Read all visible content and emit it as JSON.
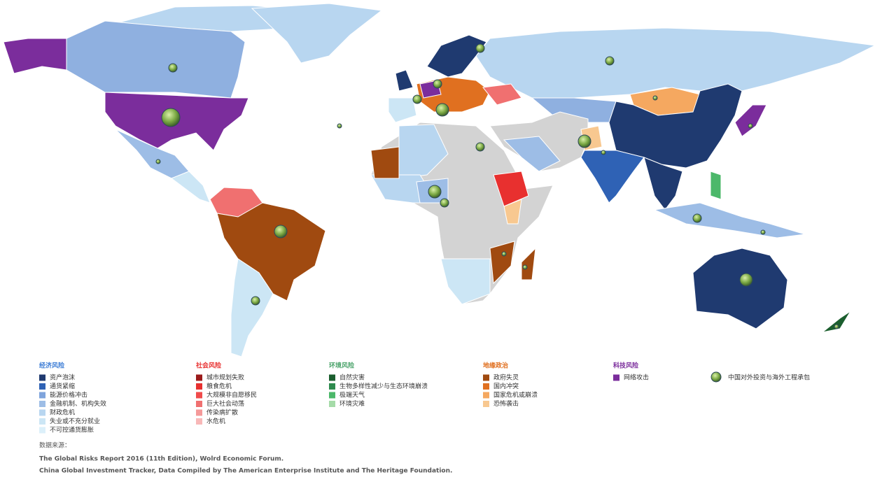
{
  "legend": {
    "groups": [
      {
        "title": "经济风险",
        "color": "#3a7bd5",
        "items": [
          {
            "label": "资产泡沫",
            "color": "#1f3a70"
          },
          {
            "label": "通货紧缩",
            "color": "#2f62b5"
          },
          {
            "label": "能源价格冲击",
            "color": "#7fa4dc"
          },
          {
            "label": "金融机制、机构失效",
            "color": "#9dbde6"
          },
          {
            "label": "财政危机",
            "color": "#b8d6f0"
          },
          {
            "label": "失业或不充分就业",
            "color": "#cce6f5"
          },
          {
            "label": "不可控通货膨胀",
            "color": "#dcf0fa"
          }
        ]
      },
      {
        "title": "社会风险",
        "color": "#e8302f",
        "items": [
          {
            "label": "城市规划失败",
            "color": "#9b1b1b"
          },
          {
            "label": "粮食危机",
            "color": "#e8302f"
          },
          {
            "label": "大规模非自愿移民",
            "color": "#f04b4b"
          },
          {
            "label": "巨大社会动荡",
            "color": "#f07070"
          },
          {
            "label": "传染病扩散",
            "color": "#f59a9a"
          },
          {
            "label": "水危机",
            "color": "#f8b8b8"
          }
        ]
      },
      {
        "title": "环境风险",
        "color": "#4aa36a",
        "items": [
          {
            "label": "自然灾害",
            "color": "#1b5e2e"
          },
          {
            "label": "生物多样性减少与生态环境崩溃",
            "color": "#2e8b4e"
          },
          {
            "label": "极端天气",
            "color": "#4cb86a"
          },
          {
            "label": "环境灾难",
            "color": "#a5dba8"
          }
        ]
      },
      {
        "title": "地缘政治",
        "color": "#e07020",
        "items": [
          {
            "label": "政府失灵",
            "color": "#a04a10"
          },
          {
            "label": "国内冲突",
            "color": "#e07020"
          },
          {
            "label": "国家危机或崩溃",
            "color": "#f5a860"
          },
          {
            "label": "恐怖袭击",
            "color": "#f8c890"
          }
        ]
      },
      {
        "title": "科技风险",
        "color": "#7b2d9c",
        "items": [
          {
            "label": "网络攻击",
            "color": "#7b2d9c"
          }
        ]
      }
    ],
    "bubble_label": "中国对外投资与海外工程承包"
  },
  "source": {
    "title": "数据来源：",
    "lines": [
      "The Global Risks Report 2016 (11th Edition), Wolrd Economic Forum.",
      "China Global Investment Tracker, Data Compiled by The American Enterprise Institute and The Heritage Foundation."
    ]
  }
}
